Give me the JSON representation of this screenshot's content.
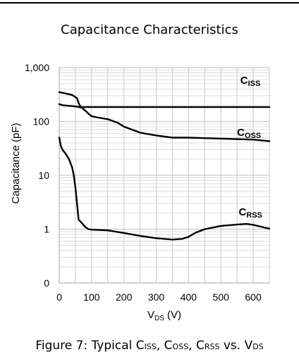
{
  "chart_data": {
    "type": "line",
    "title": "Capacitance Characteristics",
    "xlabel": {
      "main": "V",
      "sub": "DS",
      "unit": " (V)"
    },
    "ylabel": "Capacitance (pF)",
    "xlim": [
      0,
      650
    ],
    "ylim": [
      0.1,
      1000
    ],
    "yscale": "log",
    "grid": true,
    "x_ticks": [
      0,
      100,
      200,
      300,
      400,
      500,
      600
    ],
    "y_ticks": [
      {
        "value": 0.1,
        "label": "0"
      },
      {
        "value": 1,
        "label": "1"
      },
      {
        "value": 10,
        "label": "10"
      },
      {
        "value": 100,
        "label": "100"
      },
      {
        "value": 1000,
        "label": "1,000"
      }
    ],
    "series": [
      {
        "name": "Ciss",
        "label_main": "C",
        "label_sub": "ISS",
        "label_x": 560,
        "label_y": 500,
        "x": [
          0,
          20,
          40,
          55,
          60,
          65,
          70,
          100,
          200,
          300,
          400,
          500,
          600,
          650
        ],
        "y": [
          350,
          330,
          310,
          270,
          220,
          190,
          185,
          185,
          185,
          185,
          185,
          185,
          185,
          185
        ]
      },
      {
        "name": "Coss",
        "label_main": "C",
        "label_sub": "OSS",
        "label_x": 550,
        "label_y": 54,
        "x": [
          0,
          10,
          30,
          50,
          70,
          80,
          90,
          100,
          120,
          150,
          180,
          200,
          250,
          300,
          350,
          400,
          450,
          500,
          550,
          600,
          650
        ],
        "y": [
          210,
          200,
          195,
          190,
          180,
          160,
          140,
          125,
          118,
          110,
          95,
          80,
          62,
          55,
          50,
          50,
          49,
          48,
          47,
          46,
          43
        ]
      },
      {
        "name": "Crss",
        "label_main": "C",
        "label_sub": "RSS",
        "label_x": 555,
        "label_y": 1.8,
        "x": [
          0,
          5,
          10,
          20,
          30,
          40,
          45,
          50,
          55,
          60,
          70,
          80,
          90,
          100,
          150,
          200,
          250,
          300,
          350,
          380,
          400,
          420,
          450,
          500,
          550,
          580,
          600,
          650
        ],
        "y": [
          50,
          35,
          30,
          25,
          20,
          14,
          10,
          6,
          3,
          1.5,
          1.3,
          1.1,
          1.0,
          0.98,
          0.95,
          0.85,
          0.75,
          0.68,
          0.64,
          0.66,
          0.72,
          0.85,
          1.0,
          1.15,
          1.22,
          1.25,
          1.2,
          1.02
        ]
      }
    ]
  },
  "caption": {
    "p1": "Figure 7: Typical C",
    "s1": "ISS",
    "p2": ", C",
    "s2": "OSS",
    "p3": ", C",
    "s3": "RSS",
    "p4": " vs. V",
    "s4": "DS"
  }
}
